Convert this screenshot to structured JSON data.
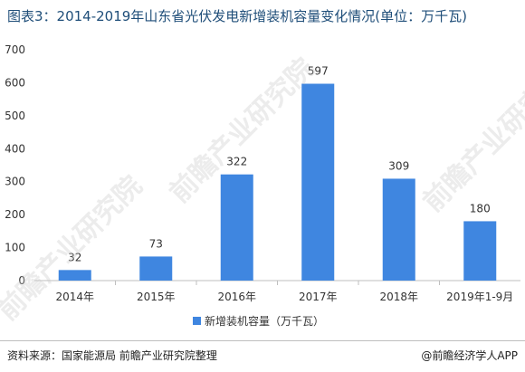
{
  "header": {
    "title": "图表3：2014-2019年山东省光伏发电新增装机容量变化情况(单位：万千瓦)"
  },
  "footer": {
    "source": "资料来源：国家能源局 前瞻产业研究院整理",
    "credit": "@前瞻经济学人APP"
  },
  "watermark": {
    "text": "前瞻产业研究院"
  },
  "colors": {
    "bar": "#3f86e0",
    "grid": "#e0e0e0",
    "title": "#1f4e79"
  },
  "chart_data": {
    "type": "bar",
    "categories": [
      "2014年",
      "2015年",
      "2016年",
      "2017年",
      "2018年",
      "2019年1-9月"
    ],
    "series": [
      {
        "name": "新增装机容量（万千瓦）",
        "values": [
          32,
          73,
          322,
          597,
          309,
          180
        ]
      }
    ],
    "ylim": [
      0,
      700
    ],
    "yticks": [
      0,
      100,
      200,
      300,
      400,
      500,
      600,
      700
    ],
    "grid": false,
    "legend_position": "bottom"
  }
}
